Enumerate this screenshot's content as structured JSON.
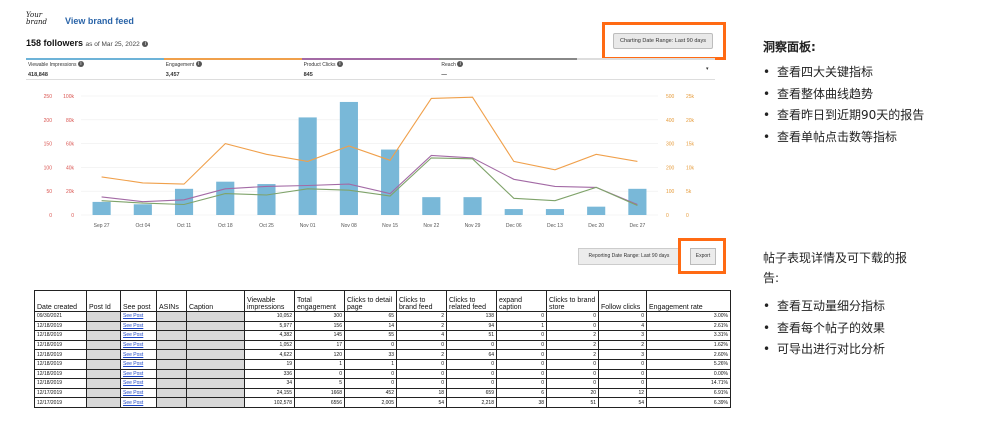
{
  "brand": {
    "logo_text": "Your brand",
    "view_feed_label": "View brand feed",
    "followers_count": "158 followers",
    "as_of": "as of Mar 25, 2022",
    "info_icon": "info-icon"
  },
  "controls": {
    "charting_range": "Charting Date Range: Last 90 days",
    "reporting_range": "Reporting Date Range: Last 90 days",
    "export_label": "Export",
    "dropdown_caret": "▾"
  },
  "metrics": [
    {
      "label": "Viewable Impressions",
      "value": "418,848",
      "color": "#6db3d8"
    },
    {
      "label": "Engagement",
      "value": "3,457",
      "color": "#f0a04b"
    },
    {
      "label": "Product Clicks",
      "value": "845",
      "color": "#a36aa5"
    },
    {
      "label": "Reach",
      "value": "—",
      "color": "#888888"
    },
    {
      "label": "",
      "value": "",
      "color": "#dddddd"
    }
  ],
  "chart_data": {
    "type": "bar",
    "categories": [
      "Sep 27",
      "Oct 04",
      "Oct 11",
      "Oct 18",
      "Oct 25",
      "Nov 01",
      "Nov 08",
      "Nov 15",
      "Nov 22",
      "Nov 29",
      "Dec 06",
      "Dec 13",
      "Dec 20",
      "Dec 27"
    ],
    "left_axis_outer": {
      "ticks": [
        "0",
        "50",
        "100",
        "150",
        "200",
        "250"
      ],
      "color": "#d9534f"
    },
    "left_axis_inner": {
      "ticks": [
        "0",
        "20k",
        "40k",
        "60k",
        "80k",
        "100k"
      ],
      "color": "#d9534f"
    },
    "right_axis_inner": {
      "ticks": [
        "0",
        "100",
        "200",
        "300",
        "400",
        "500"
      ],
      "color": "#e69b3a"
    },
    "right_axis_outer": {
      "ticks": [
        "0",
        "5k",
        "10k",
        "15k",
        "20k",
        "25k"
      ],
      "color": "#e69b3a"
    },
    "series": [
      {
        "name": "Viewable Impressions",
        "kind": "bar",
        "axis_max": 100000,
        "color": "#79b8d8",
        "values": [
          11000,
          9000,
          22000,
          28000,
          26000,
          82000,
          95000,
          55000,
          15000,
          15000,
          5000,
          5000,
          7000,
          22000
        ]
      },
      {
        "name": "Engagement",
        "kind": "line",
        "axis_max": 500,
        "color": "#f0a04b",
        "values": [
          160,
          135,
          130,
          300,
          255,
          225,
          290,
          230,
          490,
          495,
          225,
          190,
          255,
          225
        ]
      },
      {
        "name": "Product Clicks",
        "kind": "line",
        "axis_max": 250,
        "color": "#a36aa5",
        "values": [
          38,
          28,
          32,
          55,
          60,
          62,
          65,
          45,
          125,
          120,
          75,
          60,
          58,
          22
        ]
      },
      {
        "name": "Reach",
        "kind": "line",
        "axis_max": 250,
        "color": "#7fa36a",
        "values": [
          30,
          25,
          22,
          45,
          42,
          55,
          52,
          40,
          120,
          118,
          35,
          30,
          58,
          20
        ]
      }
    ]
  },
  "table": {
    "headers": [
      "Date created",
      "Post Id",
      "See post",
      "ASINs",
      "Caption",
      "Viewable impressions",
      "Total engagement",
      "Clicks to detail page",
      "Clicks to brand feed",
      "Clicks to related feed",
      "expand caption",
      "Clicks to brand store",
      "Follow clicks",
      "Engagement rate"
    ],
    "link_text": "See Post",
    "rows": [
      [
        "09/30/2021",
        "",
        "See Post",
        "",
        "",
        "10,052",
        "300",
        "65",
        "2",
        "138",
        "0",
        "0",
        "0",
        "3.00%"
      ],
      [
        "12/18/2019",
        "",
        "See Post",
        "",
        "",
        "5,977",
        "156",
        "14",
        "2",
        "94",
        "1",
        "0",
        "4",
        "2.61%"
      ],
      [
        "12/18/2019",
        "",
        "See Post",
        "",
        "",
        "4,382",
        "145",
        "55",
        "4",
        "51",
        "0",
        "2",
        "3",
        "3.31%"
      ],
      [
        "12/18/2019",
        "",
        "See Post",
        "",
        "",
        "1,052",
        "17",
        "0",
        "0",
        "0",
        "0",
        "2",
        "2",
        "1.62%"
      ],
      [
        "12/18/2019",
        "",
        "See Post",
        "",
        "",
        "4,622",
        "120",
        "33",
        "2",
        "64",
        "0",
        "2",
        "3",
        "2.60%"
      ],
      [
        "12/18/2019",
        "",
        "See Post",
        "",
        "",
        "19",
        "1",
        "1",
        "0",
        "0",
        "0",
        "0",
        "0",
        "5.26%"
      ],
      [
        "12/18/2019",
        "",
        "See Post",
        "",
        "",
        "336",
        "0",
        "0",
        "0",
        "0",
        "0",
        "0",
        "0",
        "0.00%"
      ],
      [
        "12/18/2019",
        "",
        "See Post",
        "",
        "",
        "34",
        "5",
        "0",
        "0",
        "0",
        "0",
        "0",
        "0",
        "14.71%"
      ],
      [
        "12/17/2019",
        "",
        "See Post",
        "",
        "",
        "24,155",
        "1668",
        "452",
        "18",
        "659",
        "6",
        "20",
        "12",
        "6.91%"
      ],
      [
        "12/17/2019",
        "",
        "See Post",
        "",
        "",
        "102,578",
        "6556",
        "2,005",
        "54",
        "2,218",
        "38",
        "51",
        "54",
        "6.39%"
      ]
    ]
  },
  "side_panel": {
    "insights": {
      "title": "洞察面板:",
      "items": [
        "查看四大关键指标",
        "查看整体曲线趋势",
        "查看昨日到近期90天的报告",
        "查看单帖点击数等指标"
      ]
    },
    "report": {
      "title_line1": "帖子表现详情及可下载的报",
      "title_line2": "告:",
      "items": [
        "查看互动量细分指标",
        "查看每个帖子的效果",
        "可导出进行对比分析"
      ]
    },
    "bullet": "•"
  }
}
